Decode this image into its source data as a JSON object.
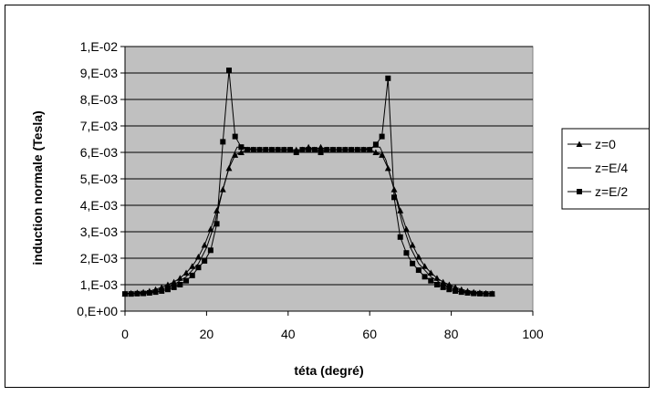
{
  "chart_data": {
    "type": "line",
    "title": "",
    "xlabel": "téta (degré)",
    "ylabel": "induction normale (Tesla)",
    "xlim": [
      0,
      100
    ],
    "ylim": [
      0,
      0.01
    ],
    "x_ticks": [
      "0",
      "20",
      "40",
      "60",
      "80",
      "100"
    ],
    "y_ticks": [
      "0,E+00",
      "1,E-03",
      "2,E-03",
      "3,E-03",
      "4,E-03",
      "5,E-03",
      "6,E-03",
      "7,E-03",
      "8,E-03",
      "9,E-03",
      "1,E-02"
    ],
    "grid": "horizontal",
    "plot_background": "#c0c0c0",
    "legend_position": "right",
    "series": [
      {
        "name": "z=0",
        "marker": "triangle",
        "points": [
          [
            0,
            0.00067
          ],
          [
            1.5,
            0.00068
          ],
          [
            3,
            0.0007
          ],
          [
            4.5,
            0.00072
          ],
          [
            6,
            0.00076
          ],
          [
            7.5,
            0.00082
          ],
          [
            9,
            0.0009
          ],
          [
            10.5,
            0.001
          ],
          [
            12,
            0.0011
          ],
          [
            13.5,
            0.00125
          ],
          [
            15,
            0.00145
          ],
          [
            16.5,
            0.0017
          ],
          [
            18,
            0.00205
          ],
          [
            19.5,
            0.0025
          ],
          [
            21,
            0.0031
          ],
          [
            22.5,
            0.0038
          ],
          [
            24,
            0.0046
          ],
          [
            25.5,
            0.0054
          ],
          [
            27,
            0.0059
          ],
          [
            28.5,
            0.006
          ],
          [
            30,
            0.0061
          ],
          [
            31.5,
            0.0061
          ],
          [
            33,
            0.0061
          ],
          [
            34.5,
            0.0061
          ],
          [
            36,
            0.0061
          ],
          [
            37.5,
            0.0061
          ],
          [
            39,
            0.0061
          ],
          [
            40.5,
            0.0061
          ],
          [
            42,
            0.0061
          ],
          [
            43.5,
            0.0061
          ],
          [
            45,
            0.0062
          ],
          [
            46.5,
            0.0061
          ],
          [
            48,
            0.0062
          ],
          [
            49.5,
            0.0061
          ],
          [
            51,
            0.0061
          ],
          [
            52.5,
            0.0061
          ],
          [
            54,
            0.0061
          ],
          [
            55.5,
            0.0061
          ],
          [
            57,
            0.0061
          ],
          [
            58.5,
            0.0061
          ],
          [
            60,
            0.0061
          ],
          [
            61.5,
            0.006
          ],
          [
            63,
            0.0059
          ],
          [
            64.5,
            0.0054
          ],
          [
            66,
            0.0046
          ],
          [
            67.5,
            0.0038
          ],
          [
            69,
            0.0031
          ],
          [
            70.5,
            0.0025
          ],
          [
            72,
            0.00205
          ],
          [
            73.5,
            0.0017
          ],
          [
            75,
            0.00145
          ],
          [
            76.5,
            0.00125
          ],
          [
            78,
            0.0011
          ],
          [
            79.5,
            0.001
          ],
          [
            81,
            0.0009
          ],
          [
            82.5,
            0.00082
          ],
          [
            84,
            0.00076
          ],
          [
            85.5,
            0.00072
          ],
          [
            87,
            0.0007
          ],
          [
            88.5,
            0.00068
          ],
          [
            90,
            0.00067
          ]
        ]
      },
      {
        "name": "z=E/4",
        "marker": "none",
        "points": [
          [
            0,
            0.00066
          ],
          [
            3,
            0.00068
          ],
          [
            6,
            0.00072
          ],
          [
            9,
            0.00082
          ],
          [
            12,
            0.001
          ],
          [
            15,
            0.0013
          ],
          [
            18,
            0.0018
          ],
          [
            20,
            0.0024
          ],
          [
            22,
            0.0033
          ],
          [
            24,
            0.0046
          ],
          [
            26,
            0.0057
          ],
          [
            27.5,
            0.0062
          ],
          [
            29,
            0.0062
          ],
          [
            32,
            0.0061
          ],
          [
            36,
            0.0061
          ],
          [
            40,
            0.0061
          ],
          [
            45,
            0.0061
          ],
          [
            50,
            0.0061
          ],
          [
            54,
            0.0061
          ],
          [
            58,
            0.0061
          ],
          [
            61,
            0.0062
          ],
          [
            62.5,
            0.0062
          ],
          [
            64,
            0.0057
          ],
          [
            66,
            0.0046
          ],
          [
            68,
            0.0033
          ],
          [
            70,
            0.0024
          ],
          [
            72,
            0.0018
          ],
          [
            75,
            0.0013
          ],
          [
            78,
            0.001
          ],
          [
            81,
            0.00082
          ],
          [
            84,
            0.00072
          ],
          [
            87,
            0.00068
          ],
          [
            90,
            0.00066
          ]
        ]
      },
      {
        "name": "z=E/2",
        "marker": "square",
        "points": [
          [
            0,
            0.00065
          ],
          [
            1.5,
            0.00065
          ],
          [
            3,
            0.00066
          ],
          [
            4.5,
            0.00067
          ],
          [
            6,
            0.00069
          ],
          [
            7.5,
            0.00072
          ],
          [
            9,
            0.00076
          ],
          [
            10.5,
            0.00082
          ],
          [
            12,
            0.0009
          ],
          [
            13.5,
            0.001
          ],
          [
            15,
            0.00115
          ],
          [
            16.5,
            0.00135
          ],
          [
            18,
            0.00165
          ],
          [
            19.5,
            0.0019
          ],
          [
            21,
            0.0023
          ],
          [
            22.5,
            0.0033
          ],
          [
            24,
            0.0064
          ],
          [
            25.5,
            0.0091
          ],
          [
            27,
            0.0066
          ],
          [
            28.5,
            0.0062
          ],
          [
            30,
            0.0061
          ],
          [
            31.5,
            0.0061
          ],
          [
            33,
            0.0061
          ],
          [
            34.5,
            0.0061
          ],
          [
            36,
            0.0061
          ],
          [
            37.5,
            0.0061
          ],
          [
            39,
            0.0061
          ],
          [
            40.5,
            0.0061
          ],
          [
            42,
            0.006
          ],
          [
            43.5,
            0.0061
          ],
          [
            45,
            0.0061
          ],
          [
            46.5,
            0.0061
          ],
          [
            48,
            0.006
          ],
          [
            49.5,
            0.0061
          ],
          [
            51,
            0.0061
          ],
          [
            52.5,
            0.0061
          ],
          [
            54,
            0.0061
          ],
          [
            55.5,
            0.0061
          ],
          [
            57,
            0.0061
          ],
          [
            58.5,
            0.0061
          ],
          [
            60,
            0.0061
          ],
          [
            61.5,
            0.0063
          ],
          [
            63,
            0.0066
          ],
          [
            64.5,
            0.0088
          ],
          [
            66,
            0.0043
          ],
          [
            67.5,
            0.0028
          ],
          [
            69,
            0.0022
          ],
          [
            70.5,
            0.0018
          ],
          [
            72,
            0.00155
          ],
          [
            73.5,
            0.0013
          ],
          [
            75,
            0.00115
          ],
          [
            76.5,
            0.001
          ],
          [
            78,
            0.0009
          ],
          [
            79.5,
            0.00082
          ],
          [
            81,
            0.00076
          ],
          [
            82.5,
            0.00072
          ],
          [
            84,
            0.00069
          ],
          [
            85.5,
            0.00067
          ],
          [
            87,
            0.00066
          ],
          [
            88.5,
            0.00065
          ],
          [
            90,
            0.00065
          ]
        ]
      }
    ]
  }
}
